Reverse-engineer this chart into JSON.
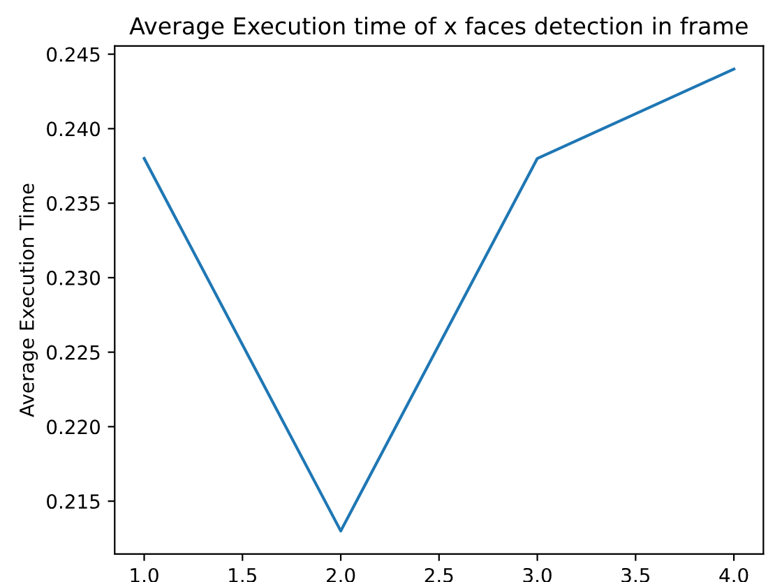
{
  "chart_data": {
    "type": "line",
    "title": "Average Execution time of x faces detection in frame",
    "ylabel": "Average Execution Time",
    "x": [
      1,
      2,
      3,
      4
    ],
    "series": [
      {
        "color": "#1f77b4",
        "values": [
          0.238,
          0.213,
          0.238,
          0.244
        ]
      }
    ],
    "xlim": [
      0.85,
      4.15
    ],
    "ylim": [
      0.21145,
      0.24555
    ],
    "xticks": [
      {
        "value": 1,
        "label": "1.0"
      },
      {
        "value": 1.5,
        "label": "1.5"
      },
      {
        "value": 2,
        "label": "2.0"
      },
      {
        "value": 2.5,
        "label": "2.5"
      },
      {
        "value": 3,
        "label": "3.0"
      },
      {
        "value": 3.5,
        "label": "3.5"
      },
      {
        "value": 4,
        "label": "4.0"
      }
    ],
    "yticks": [
      {
        "value": 0.215,
        "label": "0.215"
      },
      {
        "value": 0.22,
        "label": "0.220"
      },
      {
        "value": 0.225,
        "label": "0.225"
      },
      {
        "value": 0.23,
        "label": "0.230"
      },
      {
        "value": 0.235,
        "label": "0.235"
      },
      {
        "value": 0.24,
        "label": "0.240"
      },
      {
        "value": 0.245,
        "label": "0.245"
      }
    ],
    "grid": false,
    "legend": false
  }
}
